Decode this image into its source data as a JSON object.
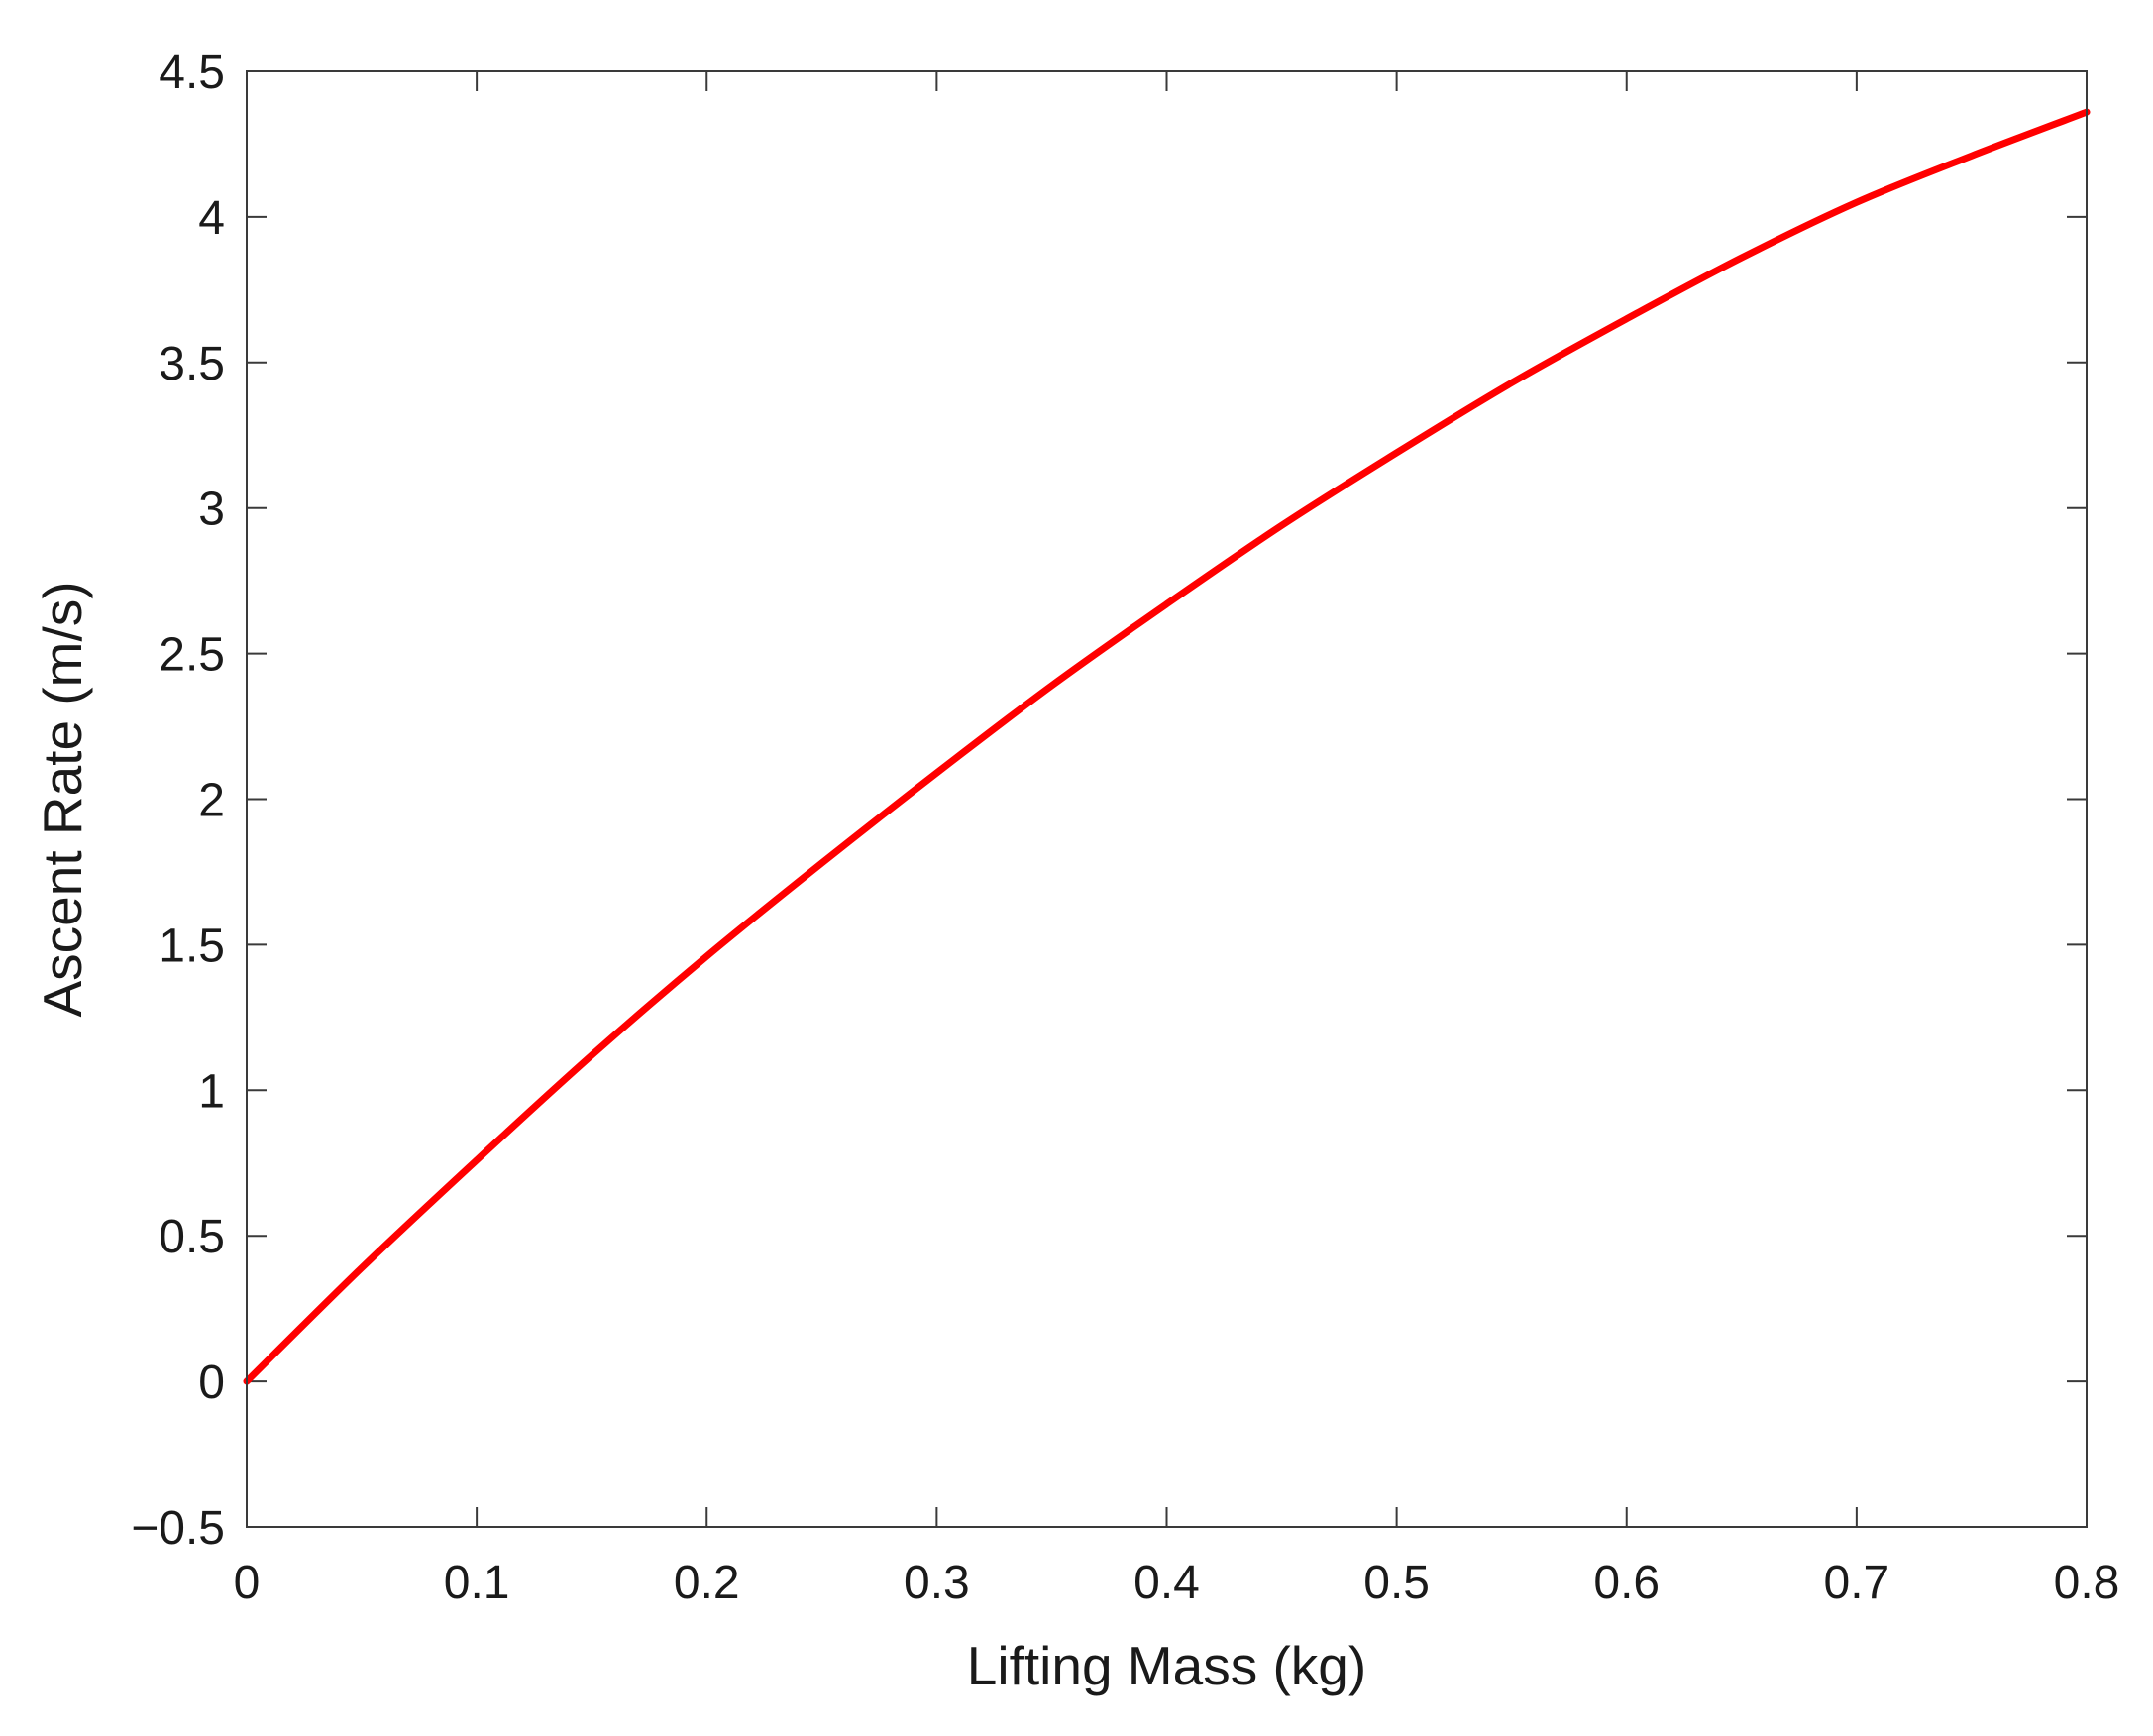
{
  "chart_data": {
    "type": "line",
    "title": "",
    "xlabel": "Lifting Mass (kg)",
    "ylabel": "Ascent Rate (m/s)",
    "xlim": [
      0,
      0.8
    ],
    "ylim": [
      -0.5,
      4.5
    ],
    "x_ticks": [
      0,
      0.1,
      0.2,
      0.3,
      0.4,
      0.5,
      0.6,
      0.7,
      0.8
    ],
    "y_ticks": [
      -0.5,
      0,
      0.5,
      1,
      1.5,
      2,
      2.5,
      3,
      3.5,
      4,
      4.5
    ],
    "x_tick_labels": [
      "0",
      "0.1",
      "0.2",
      "0.3",
      "0.4",
      "0.5",
      "0.6",
      "0.7",
      "0.8"
    ],
    "y_tick_labels": [
      "−0.5",
      "0",
      "0.5",
      "1",
      "1.5",
      "2",
      "2.5",
      "3",
      "3.5",
      "4",
      "4.5"
    ],
    "grid": false,
    "legend": "none",
    "series": [
      {
        "color": "#ff0000",
        "x": [
          0,
          0.05,
          0.1,
          0.15,
          0.2,
          0.25,
          0.3,
          0.35,
          0.4,
          0.45,
          0.5,
          0.55,
          0.6,
          0.65,
          0.7,
          0.75,
          0.8
        ],
        "y": [
          0,
          0.39,
          0.76,
          1.12,
          1.46,
          1.78,
          2.09,
          2.39,
          2.67,
          2.94,
          3.19,
          3.43,
          3.65,
          3.86,
          4.05,
          4.21,
          4.36
        ]
      }
    ]
  }
}
